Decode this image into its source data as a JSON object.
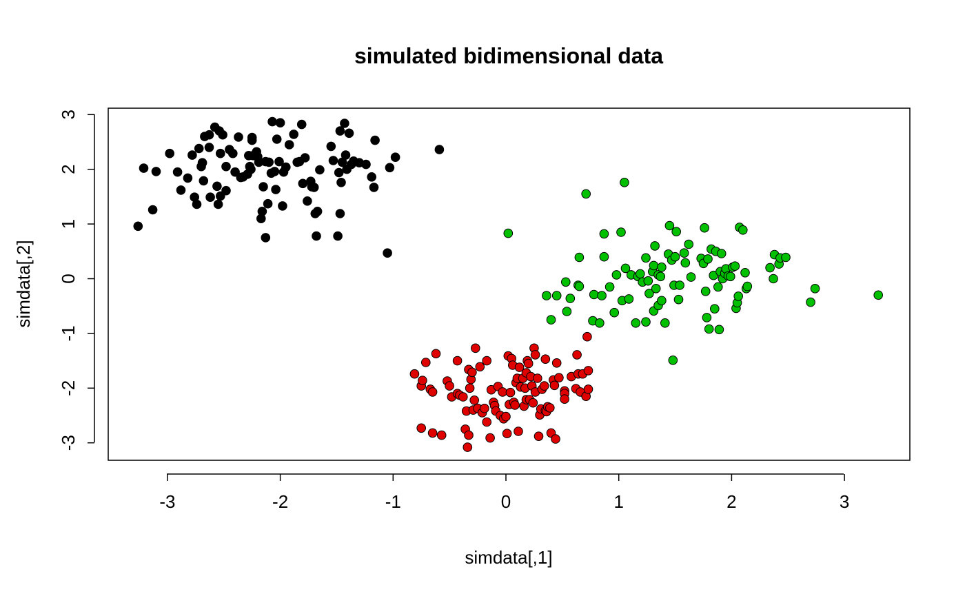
{
  "chart_data": {
    "type": "scatter",
    "title": "simulated bidimensional data",
    "xlabel": "simdata[,1]",
    "ylabel": "simdata[,2]",
    "xlim": [
      -3.55,
      3.55
    ],
    "ylim": [
      -3.3,
      3.1
    ],
    "xticks": [
      -3,
      -2,
      -1,
      0,
      1,
      2,
      3
    ],
    "yticks": [
      -3,
      -2,
      -1,
      0,
      1,
      2,
      3
    ],
    "grid": false,
    "legend": "none",
    "series": [
      {
        "color": "#000000",
        "points": [
          [
            -3.26,
            0.96
          ],
          [
            -3.21,
            2.02
          ],
          [
            -3.1,
            1.96
          ],
          [
            -3.13,
            1.26
          ],
          [
            -2.98,
            2.29
          ],
          [
            -2.91,
            1.95
          ],
          [
            -2.88,
            1.62
          ],
          [
            -2.82,
            1.84
          ],
          [
            -2.78,
            2.26
          ],
          [
            -2.76,
            1.49
          ],
          [
            -2.74,
            1.36
          ],
          [
            -2.72,
            2.38
          ],
          [
            -2.7,
            2.05
          ],
          [
            -2.69,
            2.12
          ],
          [
            -2.68,
            1.79
          ],
          [
            -2.67,
            2.6
          ],
          [
            -2.63,
            2.63
          ],
          [
            -2.63,
            2.4
          ],
          [
            -2.62,
            1.49
          ],
          [
            -2.58,
            2.77
          ],
          [
            -2.56,
            1.69
          ],
          [
            -2.55,
            1.36
          ],
          [
            -2.54,
            2.7
          ],
          [
            -2.53,
            2.29
          ],
          [
            -2.53,
            1.51
          ],
          [
            -2.51,
            2.63
          ],
          [
            -2.48,
            1.61
          ],
          [
            -2.48,
            2.05
          ],
          [
            -2.45,
            2.36
          ],
          [
            -2.42,
            2.29
          ],
          [
            -2.4,
            1.95
          ],
          [
            -2.37,
            2.59
          ],
          [
            -2.35,
            1.85
          ],
          [
            -2.33,
            1.86
          ],
          [
            -2.29,
            1.91
          ],
          [
            -2.28,
            2.25
          ],
          [
            -2.27,
            2.05
          ],
          [
            -2.26,
            2.0
          ],
          [
            -2.25,
            2.53
          ],
          [
            -2.25,
            2.58
          ],
          [
            -2.24,
            2.25
          ],
          [
            -2.21,
            2.32
          ],
          [
            -2.2,
            2.23
          ],
          [
            -2.19,
            2.13
          ],
          [
            -2.17,
            1.1
          ],
          [
            -2.16,
            1.23
          ],
          [
            -2.15,
            1.68
          ],
          [
            -2.13,
            2.14
          ],
          [
            -2.13,
            0.75
          ],
          [
            -2.11,
            1.37
          ],
          [
            -2.1,
            2.13
          ],
          [
            -2.08,
            1.93
          ],
          [
            -2.07,
            2.87
          ],
          [
            -2.05,
            1.96
          ],
          [
            -2.04,
            1.63
          ],
          [
            -2.03,
            2.55
          ],
          [
            -2.01,
            2.14
          ],
          [
            -2.0,
            2.85
          ],
          [
            -1.98,
            1.33
          ],
          [
            -1.97,
            1.95
          ],
          [
            -1.95,
            2.04
          ],
          [
            -1.92,
            2.45
          ],
          [
            -1.88,
            2.64
          ],
          [
            -1.85,
            2.13
          ],
          [
            -1.83,
            2.14
          ],
          [
            -1.81,
            2.82
          ],
          [
            -1.8,
            1.74
          ],
          [
            -1.78,
            2.21
          ],
          [
            -1.76,
            1.42
          ],
          [
            -1.73,
            1.78
          ],
          [
            -1.72,
            1.68
          ],
          [
            -1.7,
            1.67
          ],
          [
            -1.69,
            1.19
          ],
          [
            -1.68,
            0.78
          ],
          [
            -1.67,
            1.23
          ],
          [
            -1.65,
            1.99
          ],
          [
            -1.55,
            2.42
          ],
          [
            -1.53,
            2.16
          ],
          [
            -1.49,
            0.78
          ],
          [
            -1.48,
            1.94
          ],
          [
            -1.47,
            2.7
          ],
          [
            -1.47,
            1.19
          ],
          [
            -1.46,
            1.76
          ],
          [
            -1.45,
            2.13
          ],
          [
            -1.43,
            2.84
          ],
          [
            -1.42,
            2.26
          ],
          [
            -1.41,
            2.0
          ],
          [
            -1.39,
            2.66
          ],
          [
            -1.37,
            2.09
          ],
          [
            -1.35,
            2.15
          ],
          [
            -1.3,
            2.12
          ],
          [
            -1.24,
            2.09
          ],
          [
            -1.19,
            1.86
          ],
          [
            -1.17,
            1.67
          ],
          [
            -1.16,
            2.53
          ],
          [
            -1.05,
            0.47
          ],
          [
            -1.03,
            2.03
          ],
          [
            -0.98,
            2.22
          ],
          [
            -0.59,
            2.36
          ]
        ]
      },
      {
        "color": "#DF0000",
        "points": [
          [
            -0.81,
            -1.74
          ],
          [
            -0.75,
            -1.96
          ],
          [
            -0.74,
            -1.86
          ],
          [
            -0.75,
            -2.73
          ],
          [
            -0.71,
            -1.53
          ],
          [
            -0.67,
            -2.02
          ],
          [
            -0.65,
            -2.07
          ],
          [
            -0.65,
            -2.82
          ],
          [
            -0.62,
            -1.37
          ],
          [
            -0.57,
            -2.86
          ],
          [
            -0.52,
            -1.87
          ],
          [
            -0.5,
            -1.96
          ],
          [
            -0.48,
            -2.16
          ],
          [
            -0.43,
            -1.5
          ],
          [
            -0.43,
            -2.1
          ],
          [
            -0.41,
            -2.13
          ],
          [
            -0.38,
            -2.16
          ],
          [
            -0.36,
            -2.75
          ],
          [
            -0.35,
            -2.42
          ],
          [
            -0.34,
            -3.08
          ],
          [
            -0.33,
            -2.86
          ],
          [
            -0.33,
            -1.66
          ],
          [
            -0.32,
            -2.0
          ],
          [
            -0.31,
            -1.84
          ],
          [
            -0.3,
            -1.71
          ],
          [
            -0.29,
            -2.4
          ],
          [
            -0.28,
            -2.22
          ],
          [
            -0.27,
            -1.27
          ],
          [
            -0.25,
            -2.37
          ],
          [
            -0.23,
            -1.61
          ],
          [
            -0.21,
            -2.45
          ],
          [
            -0.19,
            -2.37
          ],
          [
            -0.17,
            -1.5
          ],
          [
            -0.17,
            -2.62
          ],
          [
            -0.14,
            -2.91
          ],
          [
            -0.13,
            -2.03
          ],
          [
            -0.11,
            -2.26
          ],
          [
            -0.1,
            -2.32
          ],
          [
            -0.09,
            -2.42
          ],
          [
            -0.07,
            -1.97
          ],
          [
            -0.05,
            -2.5
          ],
          [
            -0.03,
            -2.07
          ],
          [
            -0.02,
            -2.56
          ],
          [
            0.0,
            -2.52
          ],
          [
            0.01,
            -2.83
          ],
          [
            0.02,
            -1.41
          ],
          [
            0.03,
            -2.3
          ],
          [
            0.04,
            -2.08
          ],
          [
            0.05,
            -1.46
          ],
          [
            0.06,
            -1.58
          ],
          [
            0.07,
            -2.26
          ],
          [
            0.08,
            -2.31
          ],
          [
            0.09,
            -1.9
          ],
          [
            0.1,
            -1.82
          ],
          [
            0.11,
            -2.79
          ],
          [
            0.12,
            -1.62
          ],
          [
            0.13,
            -1.98
          ],
          [
            0.15,
            -1.82
          ],
          [
            0.16,
            -2.33
          ],
          [
            0.17,
            -2.0
          ],
          [
            0.18,
            -2.21
          ],
          [
            0.18,
            -1.72
          ],
          [
            0.19,
            -1.5
          ],
          [
            0.2,
            -1.55
          ],
          [
            0.21,
            -2.21
          ],
          [
            0.22,
            -1.79
          ],
          [
            0.23,
            -1.96
          ],
          [
            0.24,
            -2.27
          ],
          [
            0.25,
            -1.27
          ],
          [
            0.26,
            -2.07
          ],
          [
            0.26,
            -1.39
          ],
          [
            0.28,
            -1.82
          ],
          [
            0.29,
            -2.88
          ],
          [
            0.3,
            -2.49
          ],
          [
            0.31,
            -2.38
          ],
          [
            0.32,
            -2.02
          ],
          [
            0.34,
            -1.96
          ],
          [
            0.35,
            -1.47
          ],
          [
            0.35,
            -2.41
          ],
          [
            0.36,
            -2.43
          ],
          [
            0.37,
            -2.34
          ],
          [
            0.39,
            -2.36
          ],
          [
            0.4,
            -2.82
          ],
          [
            0.42,
            -1.85
          ],
          [
            0.43,
            -1.95
          ],
          [
            0.44,
            -2.93
          ],
          [
            0.45,
            -1.54
          ],
          [
            0.47,
            -1.81
          ],
          [
            0.52,
            -2.05
          ],
          [
            0.52,
            -2.1
          ],
          [
            0.52,
            -2.2
          ],
          [
            0.58,
            -1.79
          ],
          [
            0.62,
            -2.01
          ],
          [
            0.63,
            -1.39
          ],
          [
            0.64,
            -1.74
          ],
          [
            0.66,
            -2.07
          ],
          [
            0.68,
            -1.74
          ],
          [
            0.71,
            -2.15
          ],
          [
            0.72,
            -1.06
          ],
          [
            0.73,
            -2.02
          ],
          [
            0.73,
            -1.68
          ]
        ]
      },
      {
        "color": "#00C000",
        "points": [
          [
            0.02,
            0.83
          ],
          [
            0.36,
            -0.31
          ],
          [
            0.4,
            -0.75
          ],
          [
            0.45,
            -0.31
          ],
          [
            0.53,
            -0.06
          ],
          [
            0.54,
            -0.6
          ],
          [
            0.57,
            -0.36
          ],
          [
            0.64,
            -0.12
          ],
          [
            0.65,
            -0.14
          ],
          [
            0.65,
            0.39
          ],
          [
            0.71,
            1.55
          ],
          [
            0.77,
            -0.77
          ],
          [
            0.78,
            -0.29
          ],
          [
            0.83,
            -0.81
          ],
          [
            0.85,
            -0.31
          ],
          [
            0.87,
            0.82
          ],
          [
            0.87,
            0.4
          ],
          [
            0.92,
            -0.15
          ],
          [
            0.96,
            -0.62
          ],
          [
            0.98,
            0.07
          ],
          [
            1.02,
            0.85
          ],
          [
            1.03,
            -0.4
          ],
          [
            1.05,
            1.76
          ],
          [
            1.06,
            0.19
          ],
          [
            1.09,
            -0.37
          ],
          [
            1.11,
            0.07
          ],
          [
            1.15,
            -0.81
          ],
          [
            1.17,
            0.04
          ],
          [
            1.19,
            0.09
          ],
          [
            1.21,
            -0.06
          ],
          [
            1.24,
            -0.79
          ],
          [
            1.24,
            0.38
          ],
          [
            1.26,
            -0.04
          ],
          [
            1.27,
            -0.27
          ],
          [
            1.3,
            0.13
          ],
          [
            1.31,
            -0.59
          ],
          [
            1.31,
            0.24
          ],
          [
            1.32,
            0.6
          ],
          [
            1.33,
            -0.18
          ],
          [
            1.35,
            -0.49
          ],
          [
            1.35,
            0.07
          ],
          [
            1.37,
            0.04
          ],
          [
            1.38,
            -0.4
          ],
          [
            1.38,
            0.21
          ],
          [
            1.41,
            -0.81
          ],
          [
            1.44,
            0.45
          ],
          [
            1.45,
            0.97
          ],
          [
            1.47,
            0.34
          ],
          [
            1.48,
            -1.49
          ],
          [
            1.49,
            -0.12
          ],
          [
            1.5,
            0.4
          ],
          [
            1.51,
            0.86
          ],
          [
            1.53,
            -0.38
          ],
          [
            1.54,
            -0.12
          ],
          [
            1.58,
            0.47
          ],
          [
            1.59,
            0.29
          ],
          [
            1.62,
            0.63
          ],
          [
            1.64,
            0.03
          ],
          [
            1.73,
            0.37
          ],
          [
            1.75,
            0.28
          ],
          [
            1.76,
            0.93
          ],
          [
            1.77,
            -0.23
          ],
          [
            1.78,
            -0.71
          ],
          [
            1.79,
            0.36
          ],
          [
            1.8,
            -0.92
          ],
          [
            1.82,
            0.54
          ],
          [
            1.84,
            0.06
          ],
          [
            1.85,
            -0.55
          ],
          [
            1.86,
            0.5
          ],
          [
            1.88,
            -0.15
          ],
          [
            1.89,
            -0.93
          ],
          [
            1.9,
            0.13
          ],
          [
            1.91,
            0.46
          ],
          [
            1.92,
            0.0
          ],
          [
            1.94,
            0.1
          ],
          [
            1.95,
            0.18
          ],
          [
            1.97,
            0.05
          ],
          [
            1.99,
            0.04
          ],
          [
            2.01,
            0.21
          ],
          [
            2.03,
            0.23
          ],
          [
            2.04,
            -0.54
          ],
          [
            2.05,
            -0.44
          ],
          [
            2.06,
            -0.32
          ],
          [
            2.07,
            0.94
          ],
          [
            2.1,
            0.89
          ],
          [
            2.12,
            0.11
          ],
          [
            2.13,
            -0.18
          ],
          [
            2.14,
            -0.14
          ],
          [
            2.34,
            0.2
          ],
          [
            2.37,
            0.0
          ],
          [
            2.38,
            0.44
          ],
          [
            2.42,
            0.27
          ],
          [
            2.43,
            0.38
          ],
          [
            2.48,
            0.39
          ],
          [
            2.7,
            -0.43
          ],
          [
            2.74,
            -0.18
          ],
          [
            3.3,
            -0.3
          ]
        ]
      }
    ]
  }
}
